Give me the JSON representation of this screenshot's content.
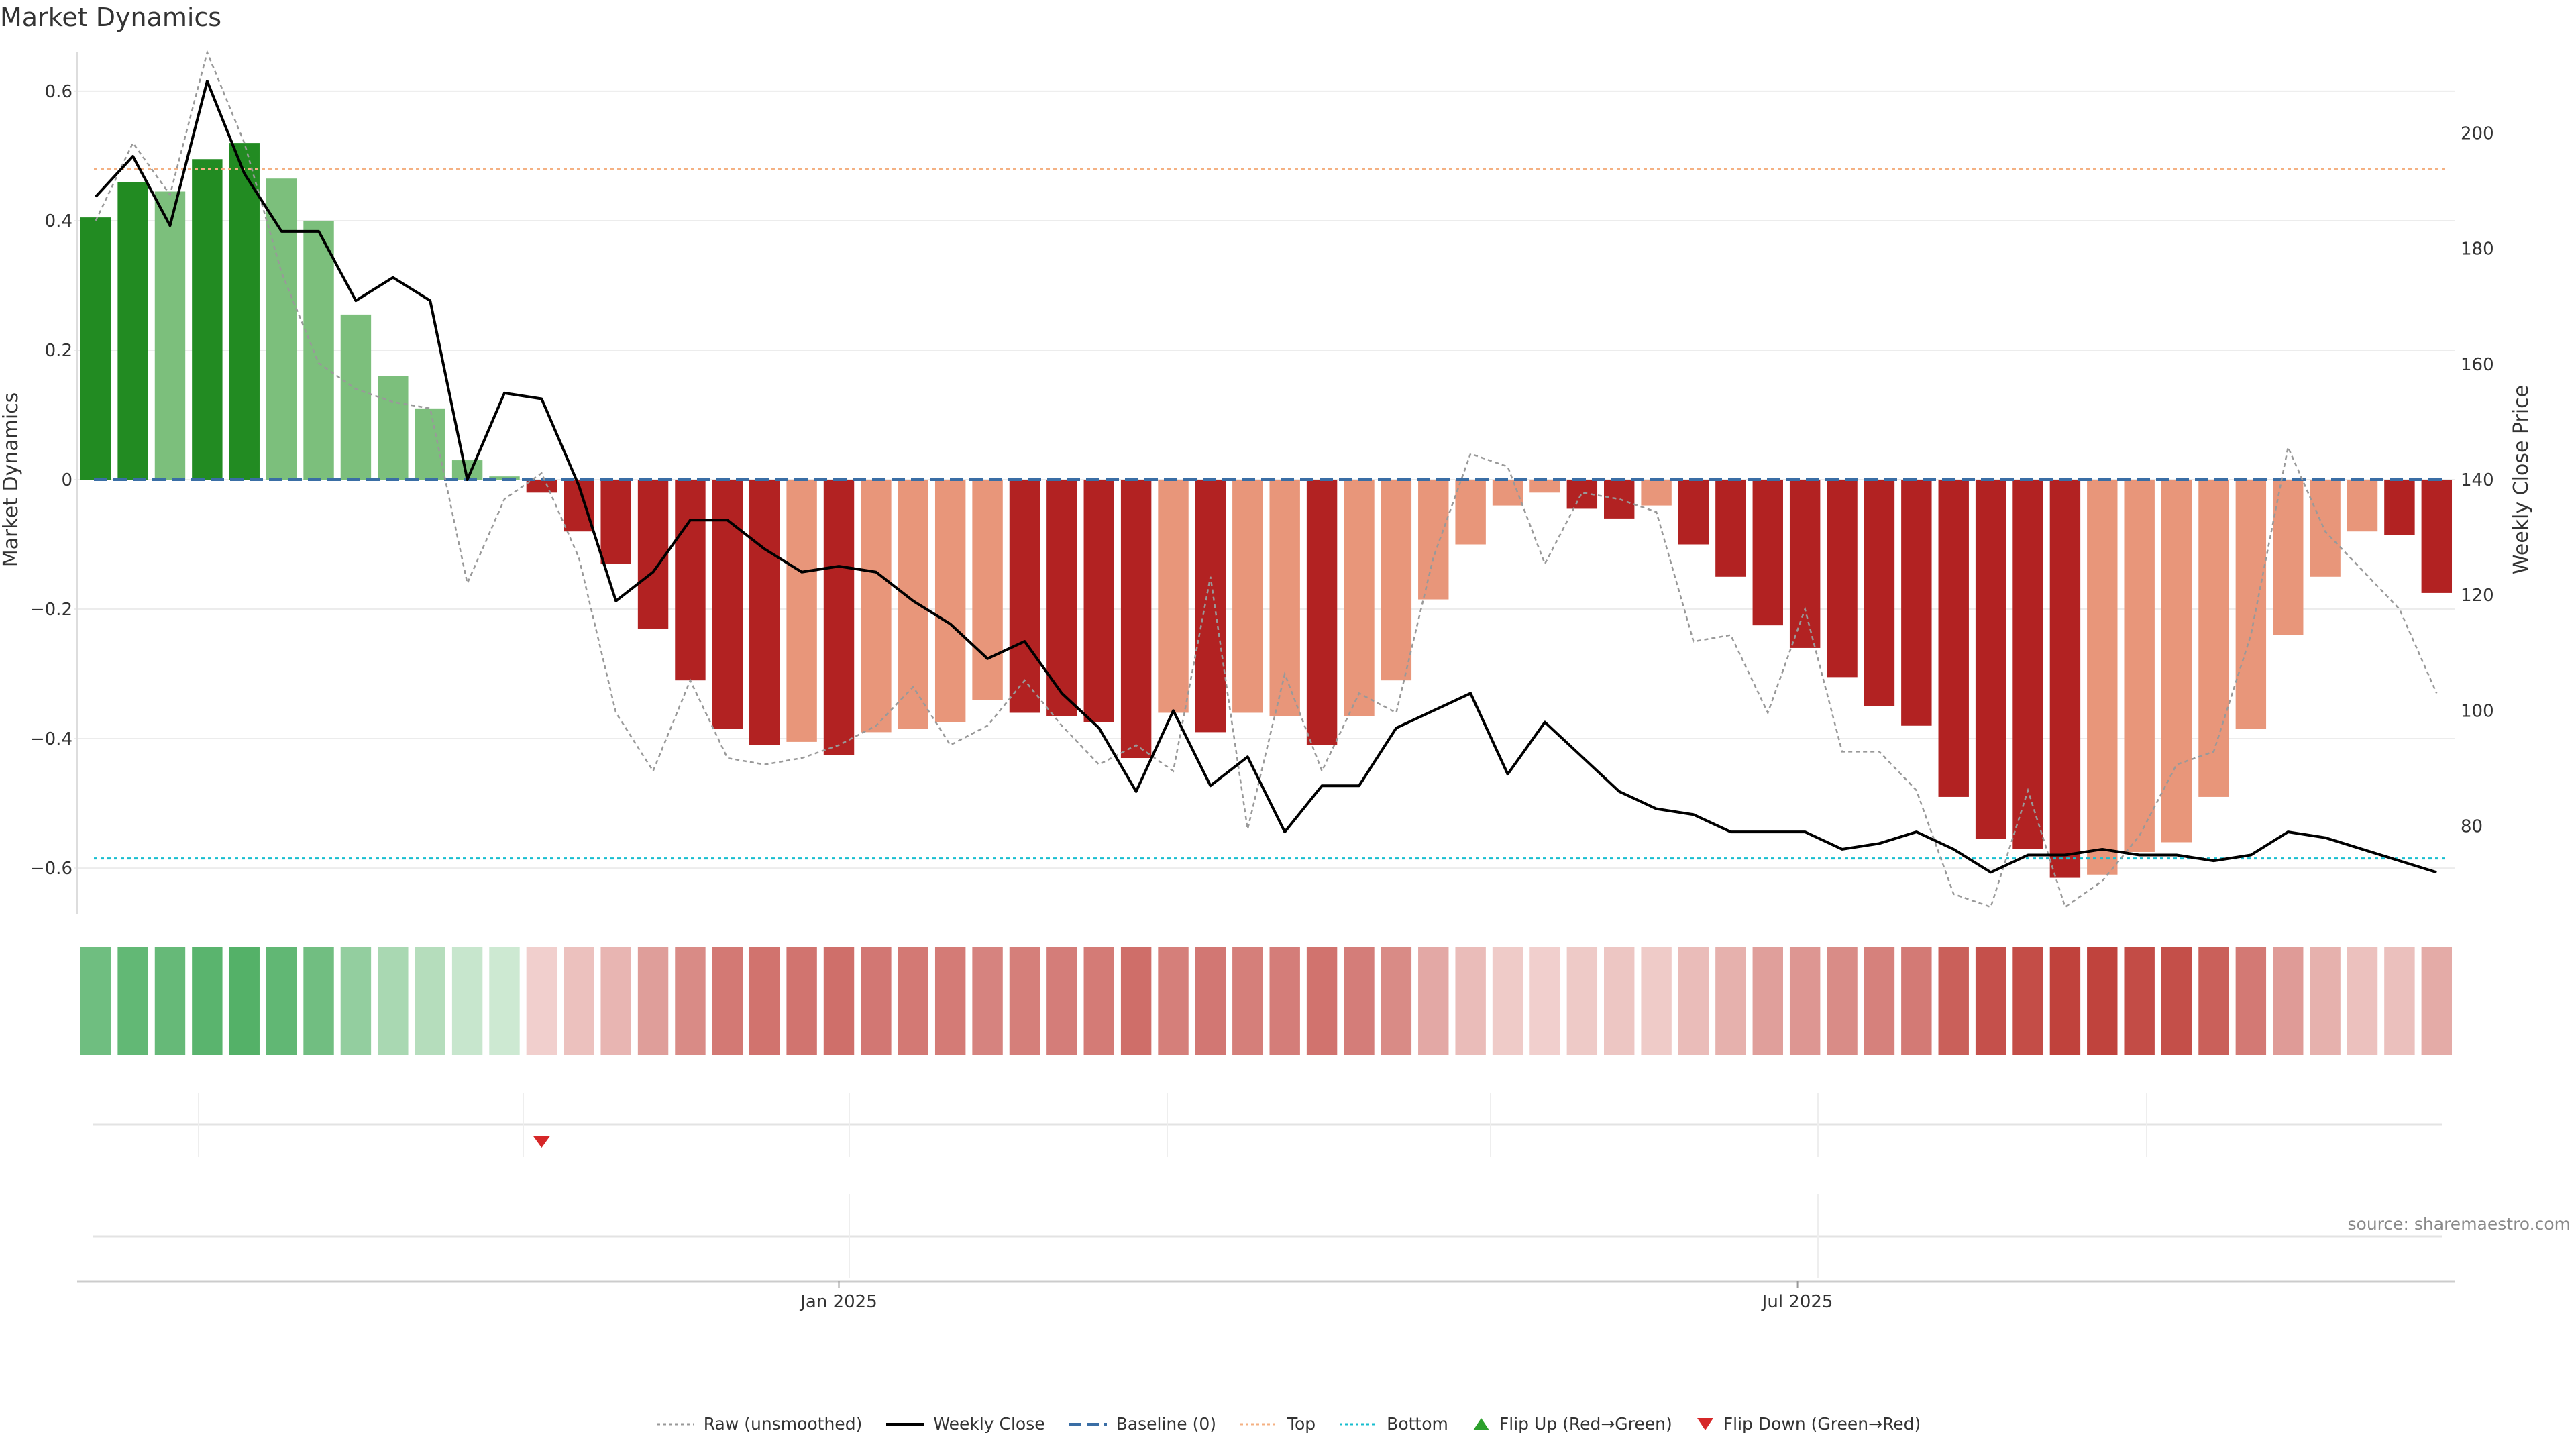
{
  "title": "Market Dynamics",
  "source": "source: sharemaestro.com",
  "legend": {
    "raw": "Raw (unsmoothed)",
    "weekly_close": "Weekly Close",
    "baseline": "Baseline (0)",
    "top": "Top",
    "bottom": "Bottom",
    "flip_up": "Flip Up (Red→Green)",
    "flip_down": "Flip Down (Green→Red)"
  },
  "colors": {
    "strong_pos": "#228b22",
    "weak_pos": "#7cbf7c",
    "strong_neg": "#b22222",
    "weak_neg": "#e8967a",
    "baseline": "#3a6ea5",
    "top": "#f4b183",
    "bottom": "#17becf",
    "price": "#000000",
    "raw": "#999999",
    "flip_down": "#d62728",
    "flip_up": "#2ca02c"
  },
  "chart_data": {
    "type": "bar",
    "title": "Market Dynamics",
    "ylabel": "Market Dynamics",
    "y2label": "Weekly Close Price",
    "ylim": [
      -0.66,
      0.66
    ],
    "y2lim": [
      66,
      214
    ],
    "yticks": [
      "0.6",
      "0.4",
      "0.2",
      "0",
      "−0.2",
      "−0.4",
      "−0.6"
    ],
    "yticks_values": [
      0.6,
      0.4,
      0.2,
      0,
      -0.2,
      -0.4,
      -0.6
    ],
    "y2ticks": [
      "200",
      "180",
      "160",
      "140",
      "120",
      "100",
      "80"
    ],
    "y2ticks_values": [
      200,
      180,
      160,
      140,
      120,
      100,
      80
    ],
    "x_ticks": [
      "Jan 2025",
      "Jul 2025"
    ],
    "x_tick_index": [
      20.5,
      46.3
    ],
    "top_level": 0.48,
    "bottom_level": -0.585,
    "baseline": 0,
    "dynamics": [
      0.405,
      0.46,
      0.445,
      0.495,
      0.52,
      0.465,
      0.4,
      0.255,
      0.16,
      0.11,
      0.03,
      0.005,
      -0.02,
      -0.08,
      -0.13,
      -0.23,
      -0.31,
      -0.385,
      -0.41,
      -0.405,
      -0.425,
      -0.39,
      -0.385,
      -0.375,
      -0.34,
      -0.36,
      -0.365,
      -0.375,
      -0.43,
      -0.36,
      -0.39,
      -0.36,
      -0.365,
      -0.41,
      -0.365,
      -0.31,
      -0.185,
      -0.1,
      -0.04,
      -0.02,
      -0.045,
      -0.06,
      -0.04,
      -0.1,
      -0.15,
      -0.225,
      -0.26,
      -0.305,
      -0.35,
      -0.38,
      -0.49,
      -0.555,
      -0.57,
      -0.615,
      -0.61,
      -0.575,
      -0.56,
      -0.49,
      -0.385,
      -0.24,
      -0.15,
      -0.08,
      -0.085,
      -0.175
    ],
    "strength": [
      "strong",
      "strong",
      "weak",
      "strong",
      "strong",
      "weak",
      "weak",
      "weak",
      "weak",
      "weak",
      "weak",
      "weak",
      "strong",
      "strong",
      "strong",
      "strong",
      "strong",
      "strong",
      "strong",
      "weak",
      "strong",
      "weak",
      "weak",
      "weak",
      "weak",
      "strong",
      "strong",
      "strong",
      "strong",
      "weak",
      "strong",
      "weak",
      "weak",
      "strong",
      "weak",
      "weak",
      "weak",
      "weak",
      "weak",
      "weak",
      "strong",
      "strong",
      "weak",
      "strong",
      "strong",
      "strong",
      "strong",
      "strong",
      "strong",
      "strong",
      "strong",
      "strong",
      "strong",
      "strong",
      "weak",
      "weak",
      "weak",
      "weak",
      "weak",
      "weak",
      "weak",
      "weak",
      "strong",
      "strong"
    ],
    "raw": [
      0.4,
      0.52,
      0.44,
      0.66,
      0.52,
      0.32,
      0.18,
      0.14,
      0.12,
      0.11,
      -0.16,
      -0.03,
      0.01,
      -0.12,
      -0.36,
      -0.45,
      -0.31,
      -0.43,
      -0.44,
      -0.43,
      -0.41,
      -0.38,
      -0.32,
      -0.41,
      -0.38,
      -0.31,
      -0.38,
      -0.44,
      -0.41,
      -0.45,
      -0.15,
      -0.54,
      -0.3,
      -0.45,
      -0.33,
      -0.36,
      -0.12,
      0.04,
      0.02,
      -0.13,
      -0.02,
      -0.03,
      -0.05,
      -0.25,
      -0.24,
      -0.36,
      -0.2,
      -0.42,
      -0.42,
      -0.48,
      -0.64,
      -0.66,
      -0.48,
      -0.66,
      -0.62,
      -0.55,
      -0.44,
      -0.42,
      -0.24,
      0.05,
      -0.08,
      -0.14,
      -0.2,
      -0.33
    ],
    "weekly_close": [
      189,
      196,
      184,
      209,
      193,
      183,
      183,
      171,
      175,
      171,
      140,
      155,
      154,
      139,
      119,
      124,
      133,
      133,
      128,
      124,
      125,
      124,
      119,
      115,
      109,
      112,
      103,
      97,
      86,
      100,
      87,
      92,
      79,
      87,
      87,
      97,
      100,
      103,
      89,
      98,
      92,
      86,
      83,
      82,
      79,
      79,
      79,
      76,
      77,
      79,
      76,
      72,
      75,
      75,
      76,
      75,
      75,
      74,
      75,
      79,
      78,
      76,
      74,
      72
    ],
    "flip_down_index": [
      12
    ],
    "flip_up_index": []
  }
}
